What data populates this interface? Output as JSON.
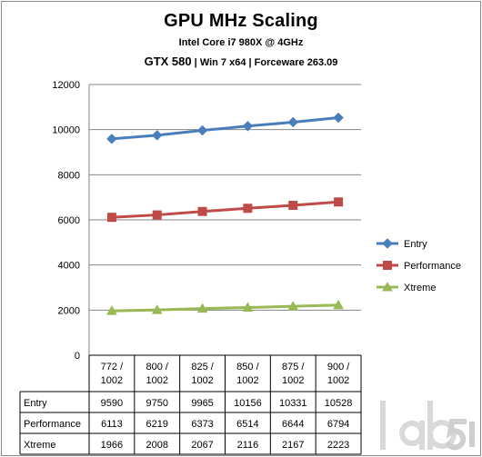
{
  "chart_data": {
    "type": "line",
    "title": "GPU MHz Scaling",
    "subtitle_1": "Intel Core i7 980X @ 4GHz",
    "subtitle_2_gpu": "GTX 580",
    "subtitle_2_rest": " | Win 7 x64  | Forceware 263.09",
    "categories": [
      [
        "772 /",
        "1002"
      ],
      [
        "800 /",
        "1002"
      ],
      [
        "825 /",
        "1002"
      ],
      [
        "850 /",
        "1002"
      ],
      [
        "875 /",
        "1002"
      ],
      [
        "900 /",
        "1002"
      ]
    ],
    "ylim": [
      0,
      12000
    ],
    "yticks": [
      0,
      2000,
      4000,
      6000,
      8000,
      10000,
      12000
    ],
    "grid": true,
    "legend_position": "right",
    "series": [
      {
        "name": "Entry",
        "values": [
          9590,
          9750,
          9965,
          10156,
          10331,
          10528
        ],
        "color": "#4a7ebb",
        "marker": "diamond"
      },
      {
        "name": "Performance",
        "values": [
          6113,
          6219,
          6373,
          6514,
          6644,
          6794
        ],
        "color": "#be4b48",
        "marker": "square"
      },
      {
        "name": "Xtreme",
        "values": [
          1966,
          2008,
          2067,
          2116,
          2167,
          2223
        ],
        "color": "#98b954",
        "marker": "triangle"
      }
    ]
  },
  "watermark": "lab501"
}
